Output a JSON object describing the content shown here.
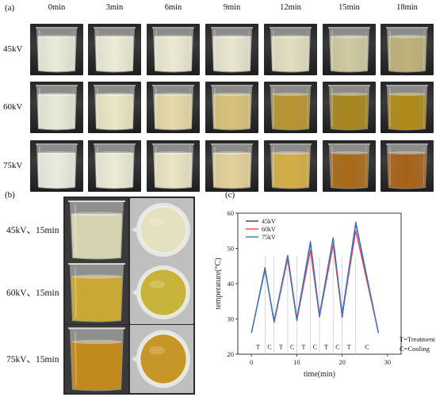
{
  "panel_a": {
    "label": "(a)",
    "times": [
      "0min",
      "3min",
      "6min",
      "9min",
      "12min",
      "15min",
      "18min"
    ],
    "voltages": [
      "45kV",
      "60kV",
      "75kV"
    ],
    "liquid_colors": [
      [
        "#e9ead8",
        "#ecebd6",
        "#ebe9d2",
        "#e8e6cf",
        "#e2dfc0",
        "#cfc9a0",
        "#bfb27a"
      ],
      [
        "#e8ead8",
        "#ebe6c6",
        "#e6d9a6",
        "#d8c27a",
        "#b99430",
        "#a8861c",
        "#b08a18"
      ],
      [
        "#ebece0",
        "#ecebd7",
        "#ebe4c4",
        "#e3d19a",
        "#d4ae45",
        "#a86a18",
        "#a76218"
      ]
    ]
  },
  "panel_b": {
    "label": "(b)",
    "rows": [
      "45kV、15min",
      "60kV、15min",
      "75kV、15min"
    ],
    "side_colors": [
      "#d6d3b0",
      "#c9a836",
      "#c08a1e"
    ],
    "top_colors": [
      "#e4e1c0",
      "#c8b43a",
      "#c79628"
    ]
  },
  "panel_c": {
    "label": "(c)",
    "legend_note": [
      "T=Treatment",
      "C=Cooling"
    ]
  },
  "chart_data": {
    "type": "line",
    "xlabel": "time(min)",
    "ylabel": "temperature(°C)",
    "xlim": [
      -3,
      33
    ],
    "ylim": [
      20,
      60
    ],
    "xticks": [
      0,
      10,
      20,
      30
    ],
    "yticks": [
      20,
      30,
      40,
      50,
      60
    ],
    "series": [
      {
        "name": "45kV",
        "color": "#3a3a8a",
        "x": [
          0,
          3,
          5,
          8,
          10,
          13,
          15,
          18,
          20,
          23,
          28
        ],
        "y": [
          26,
          44.5,
          29,
          48,
          30,
          51.5,
          31,
          53,
          30.5,
          57,
          26
        ]
      },
      {
        "name": "60kV",
        "color": "#e8454a",
        "x": [
          0,
          3,
          5,
          8,
          10,
          13,
          15,
          18,
          20,
          23,
          28
        ],
        "y": [
          26,
          44,
          29,
          47,
          29.5,
          49.5,
          30.5,
          51,
          31,
          55,
          26
        ]
      },
      {
        "name": "75kV",
        "color": "#2f79c8",
        "x": [
          0,
          3,
          5,
          8,
          10,
          13,
          15,
          18,
          20,
          23,
          28
        ],
        "y": [
          26,
          44,
          29.5,
          48,
          30,
          52,
          31,
          53,
          31.5,
          57.5,
          26
        ]
      }
    ],
    "phase_lines_x": [
      3,
      5,
      8,
      10,
      13,
      15,
      18,
      20,
      23
    ],
    "phase_markers": [
      {
        "x": 1.5,
        "label": "T"
      },
      {
        "x": 4,
        "label": "C"
      },
      {
        "x": 6.5,
        "label": "T"
      },
      {
        "x": 9,
        "label": "C"
      },
      {
        "x": 11.5,
        "label": "T"
      },
      {
        "x": 14,
        "label": "C"
      },
      {
        "x": 16.5,
        "label": "T"
      },
      {
        "x": 19,
        "label": "C"
      },
      {
        "x": 21.5,
        "label": "T"
      },
      {
        "x": 25.5,
        "label": "C"
      }
    ],
    "grid": false,
    "legend_position": "top-left"
  }
}
